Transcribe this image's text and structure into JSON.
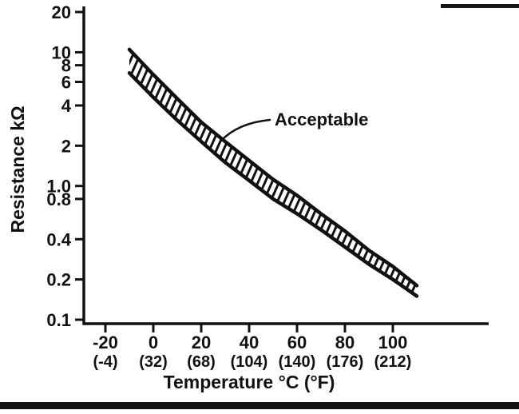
{
  "page": {
    "background": "#ffffff",
    "ink": "#111111"
  },
  "chart_data": {
    "type": "area",
    "title": "",
    "xlabel": "Temperature °C (°F)",
    "ylabel": "Resistance kΩ",
    "x_scale": "linear",
    "y_scale": "log",
    "xlim": [
      -30,
      140
    ],
    "ylim": [
      0.1,
      20
    ],
    "grid": false,
    "legend_position": "none",
    "y_ticks": [
      {
        "value": 20,
        "label": "20"
      },
      {
        "value": 10,
        "label": "10"
      },
      {
        "value": 8,
        "label": "8"
      },
      {
        "value": 6,
        "label": "6"
      },
      {
        "value": 4,
        "label": "4"
      },
      {
        "value": 2,
        "label": "2"
      },
      {
        "value": 1.0,
        "label": "1.0"
      },
      {
        "value": 0.8,
        "label": "0.8"
      },
      {
        "value": 0.4,
        "label": "0.4"
      },
      {
        "value": 0.2,
        "label": "0.2"
      },
      {
        "value": 0.1,
        "label": "0.1"
      }
    ],
    "x_ticks": [
      {
        "value": -20,
        "label_c": "-20",
        "label_f": "(-4)"
      },
      {
        "value": 0,
        "label_c": "0",
        "label_f": "(32)"
      },
      {
        "value": 20,
        "label_c": "20",
        "label_f": "(68)"
      },
      {
        "value": 40,
        "label_c": "40",
        "label_f": "(104)"
      },
      {
        "value": 60,
        "label_c": "60",
        "label_f": "(140)"
      },
      {
        "value": 80,
        "label_c": "80",
        "label_f": "(176)"
      },
      {
        "value": 100,
        "label_c": "100",
        "label_f": "(212)"
      }
    ],
    "annotation": {
      "text": "Acceptable"
    },
    "band": {
      "description": "Acceptable resistance range (hatched band between limits)",
      "x": [
        -10,
        0,
        10,
        20,
        30,
        40,
        50,
        60,
        70,
        80,
        90,
        100,
        110
      ],
      "series": [
        {
          "name": "upper_limit_kohm",
          "values": [
            10.5,
            6.8,
            4.5,
            3.0,
            2.15,
            1.55,
            1.12,
            0.85,
            0.62,
            0.46,
            0.33,
            0.25,
            0.18
          ]
        },
        {
          "name": "lower_limit_kohm",
          "values": [
            7.0,
            4.6,
            3.1,
            2.15,
            1.5,
            1.1,
            0.8,
            0.62,
            0.47,
            0.35,
            0.26,
            0.2,
            0.15
          ]
        }
      ],
      "fill": "hatched"
    },
    "colors": {
      "ink": "#111111"
    }
  }
}
